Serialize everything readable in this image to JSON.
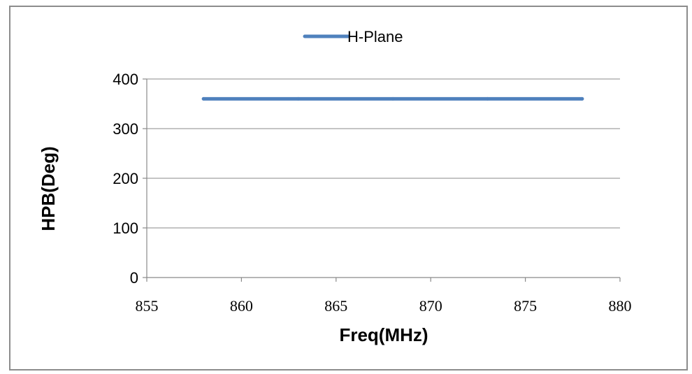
{
  "chart_data": {
    "type": "line",
    "title": "",
    "xlabel": "Freq(MHz)",
    "ylabel": "HPB(Deg)",
    "xlim": [
      855,
      880
    ],
    "ylim": [
      0,
      400
    ],
    "xticks": [
      "855",
      "860",
      "865",
      "870",
      "875",
      "880"
    ],
    "yticks": [
      "0",
      "100",
      "200",
      "300",
      "400"
    ],
    "grid": true,
    "legend_position": "top-center",
    "series": [
      {
        "name": "H-Plane",
        "color": "#4f81bd",
        "x": [
          858,
          863,
          868,
          873,
          878
        ],
        "y": [
          360,
          360,
          360,
          360,
          360
        ]
      }
    ]
  }
}
